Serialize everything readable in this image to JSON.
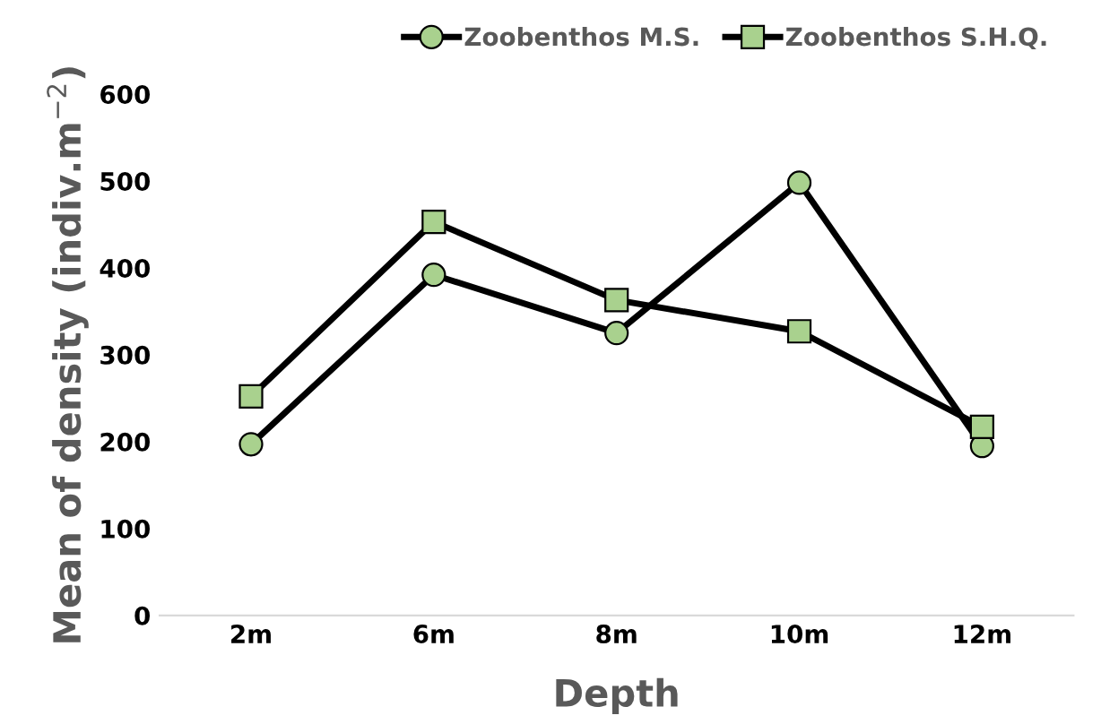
{
  "chart_data": {
    "type": "line",
    "xlabel": "Depth",
    "ylabel": "Mean of density (indiv.m$^{−2}$)",
    "categories": [
      "2m",
      "6m",
      "8m",
      "10m",
      "12m"
    ],
    "series": [
      {
        "name": "Zoobenthos M.S.",
        "color": "#000000",
        "marker": "circle",
        "values": [
          197,
          392,
          325,
          498,
          195
        ]
      },
      {
        "name": "Zoobenthos S.H.Q.",
        "color": "#000000",
        "marker": "square",
        "values": [
          252,
          453,
          363,
          327,
          217
        ]
      }
    ],
    "ylim": [
      0,
      600
    ],
    "yticks": [
      0,
      100,
      200,
      300,
      400,
      500,
      600
    ],
    "grid": false,
    "legend": "top",
    "line_style": "solid"
  }
}
